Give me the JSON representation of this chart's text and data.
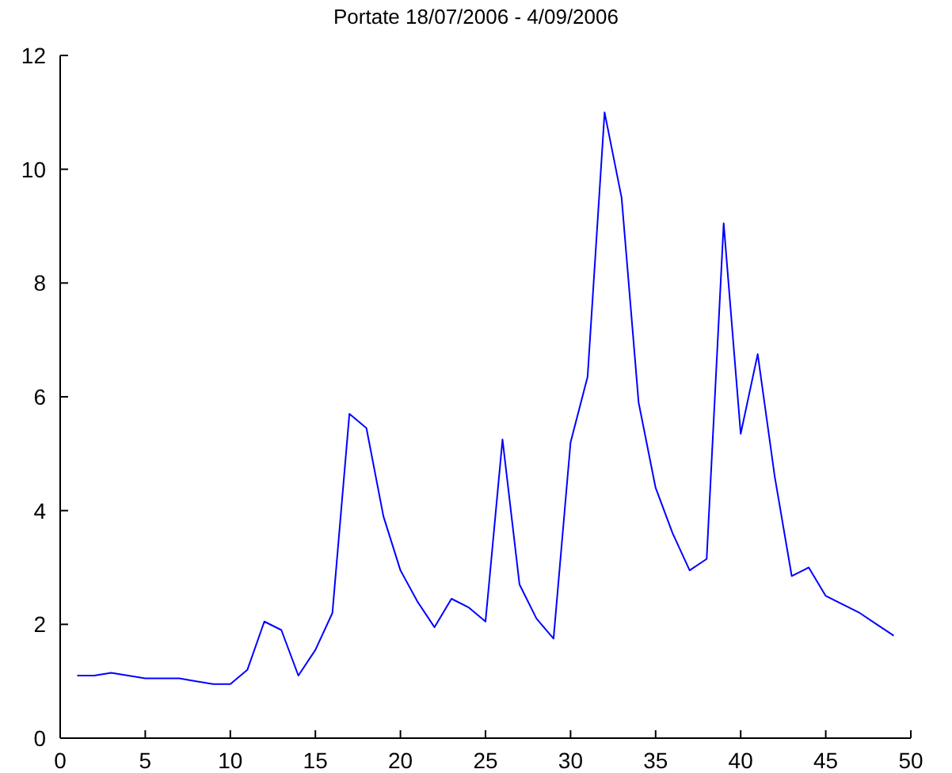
{
  "chart_data": {
    "type": "line",
    "title": "Portate 18/07/2006 - 4/09/2006",
    "x": [
      1,
      2,
      3,
      4,
      5,
      6,
      7,
      8,
      9,
      10,
      11,
      12,
      13,
      14,
      15,
      16,
      17,
      18,
      19,
      20,
      21,
      22,
      23,
      24,
      25,
      26,
      27,
      28,
      29,
      30,
      31,
      32,
      33,
      34,
      35,
      36,
      37,
      38,
      39,
      40,
      41,
      42,
      43,
      44,
      45,
      46,
      47,
      48,
      49
    ],
    "series": [
      {
        "color": "#0000ff",
        "values": [
          1.1,
          1.1,
          1.15,
          1.1,
          1.05,
          1.05,
          1.05,
          1.0,
          0.95,
          0.95,
          1.2,
          2.05,
          1.9,
          1.1,
          1.55,
          2.2,
          5.7,
          5.45,
          3.9,
          2.95,
          2.4,
          1.95,
          2.45,
          2.3,
          2.05,
          5.25,
          2.7,
          2.1,
          1.75,
          5.2,
          6.35,
          11.0,
          9.5,
          5.9,
          4.4,
          3.6,
          2.95,
          3.15,
          9.05,
          5.35,
          6.75,
          4.6,
          2.85,
          3.0,
          2.5,
          2.35,
          2.2,
          2.0,
          1.8
        ]
      }
    ],
    "xlim": [
      0,
      50
    ],
    "xticks": [
      0,
      5,
      10,
      15,
      20,
      25,
      30,
      35,
      40,
      45,
      50
    ],
    "ylim": [
      0,
      12
    ],
    "yticks": [
      0,
      2,
      4,
      6,
      8,
      10,
      12
    ],
    "grid": false,
    "legend": false,
    "marker": "none",
    "line_style": "solid"
  }
}
